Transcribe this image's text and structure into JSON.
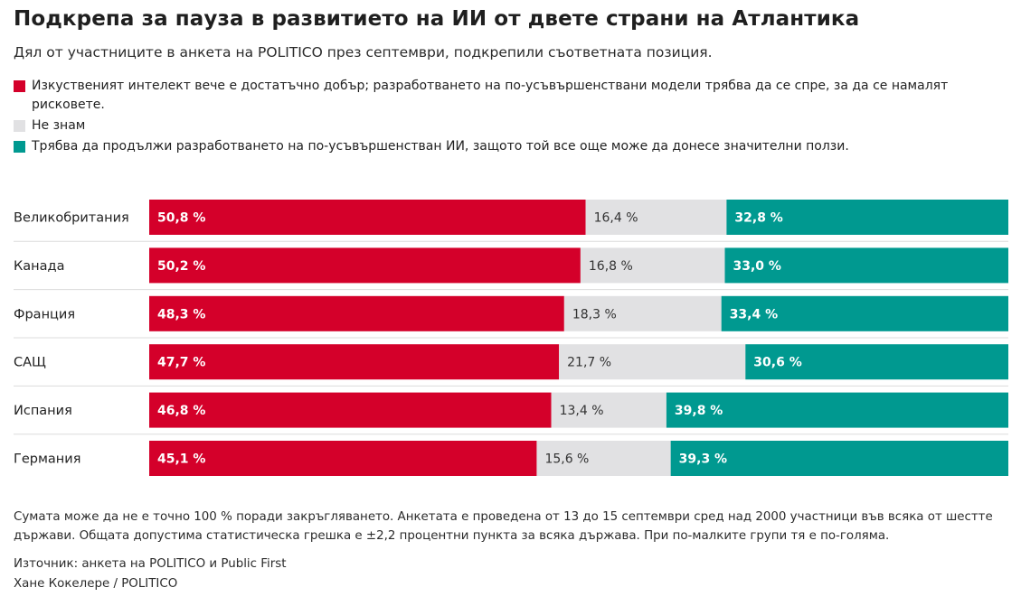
{
  "title": "Подкрепа за пауза в развитието на ИИ от двете страни на Атлантика",
  "subtitle": "Дял от участниците в анкета на POLITICO през септември, подкрепили съответната позиция.",
  "legend": [
    {
      "label": "Изкуственият интелект вече е достатъчно добър; разработването на по-усъвършенствани модели трябва да се спре, за да се намалят рисковете.",
      "color": "#d4002a"
    },
    {
      "label": "Не знам",
      "color": "#e1e1e3"
    },
    {
      "label": "Трябва да продължи разработването на по-усъвършенстван ИИ, защото той все още може да донесе значителни ползи.",
      "color": "#009990"
    }
  ],
  "chart_data": {
    "type": "bar",
    "stacked": true,
    "orientation": "horizontal",
    "normalized": true,
    "categories": [
      "Великобритания",
      "Канада",
      "Франция",
      "САЩ",
      "Испания",
      "Германия"
    ],
    "series": [
      {
        "name": "Изкуственият интелект вече е достатъчно добър; разработването на по-усъвършенствани модели трябва да се спре, за да се намалят рисковете.",
        "values": [
          50.8,
          50.2,
          48.3,
          47.7,
          46.8,
          45.1
        ],
        "labels": [
          "50,8 %",
          "50,2 %",
          "48,3 %",
          "47,7 %",
          "46,8 %",
          "45,1 %"
        ],
        "color": "#d4002a",
        "label_color": "#ffffff"
      },
      {
        "name": "Не знам",
        "values": [
          16.4,
          16.8,
          18.3,
          21.7,
          13.4,
          15.6
        ],
        "labels": [
          "16,4 %",
          "16,8 %",
          "18,3 %",
          "21,7 %",
          "13,4 %",
          "15,6 %"
        ],
        "color": "#e1e1e3",
        "label_color": "#333333"
      },
      {
        "name": "Трябва да продължи разработването на по-усъвършенстван ИИ, защото той все още може да донесе значителни ползи.",
        "values": [
          32.8,
          33.0,
          33.4,
          30.6,
          39.8,
          39.3
        ],
        "labels": [
          "32,8 %",
          "33,0 %",
          "33,4 %",
          "30,6 %",
          "39,8 %",
          "39,3 %"
        ],
        "color": "#009990",
        "label_color": "#ffffff"
      }
    ],
    "grid": false,
    "legend_position": "top"
  },
  "note": "Сумата може да не е точно 100 % поради закръгляването. Анкетата е проведена от 13 до 15 септември сред над 2000 участници във всяка от шестте държави. Общата допустима статистическа грешка е ±2,2 процентни пункта за всяка държава. При по-малките групи тя е по-голяма.",
  "source": "Източник: анкета на POLITICO и Public First",
  "credit": "Ханe Кокелере / POLITICO"
}
